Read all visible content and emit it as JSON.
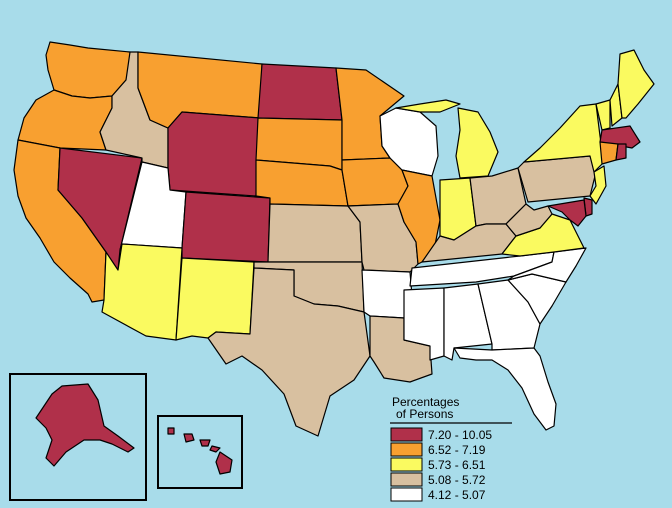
{
  "legend": {
    "title_line1": "Percentages",
    "title_line2": "of Persons",
    "classes": [
      {
        "label": "7.20 - 10.05",
        "color": "#b0304a"
      },
      {
        "label": "6.52 - 7.19",
        "color": "#f8a030"
      },
      {
        "label": "5.73 - 6.51",
        "color": "#fafa60"
      },
      {
        "label": "5.08 - 5.72",
        "color": "#d8c0a0"
      },
      {
        "label": "4.12 - 5.07",
        "color": "#ffffff"
      }
    ]
  },
  "state_classes": {
    "WA": 1,
    "OR": 1,
    "CA": 1,
    "NV": 0,
    "ID": 3,
    "MT": 1,
    "WY": 0,
    "UT": 4,
    "CO": 0,
    "AZ": 2,
    "NM": 2,
    "ND": 0,
    "SD": 1,
    "NE": 1,
    "KS": 3,
    "OK": 3,
    "TX": 3,
    "MN": 1,
    "IA": 1,
    "MO": 3,
    "AR": 4,
    "LA": 3,
    "WI": 4,
    "IL": 1,
    "MI": 2,
    "IN": 2,
    "OH": 3,
    "KY": 3,
    "TN": 4,
    "MS": 4,
    "AL": 4,
    "GA": 4,
    "FL": 4,
    "SC": 4,
    "NC": 4,
    "VA": 2,
    "WV": 3,
    "PA": 3,
    "NY": 2,
    "VT": 2,
    "NH": 2,
    "ME": 2,
    "MA": 0,
    "RI": 0,
    "CT": 1,
    "NJ": 2,
    "DE": 0,
    "MD": 0,
    "AK": 0,
    "HI": 0
  }
}
